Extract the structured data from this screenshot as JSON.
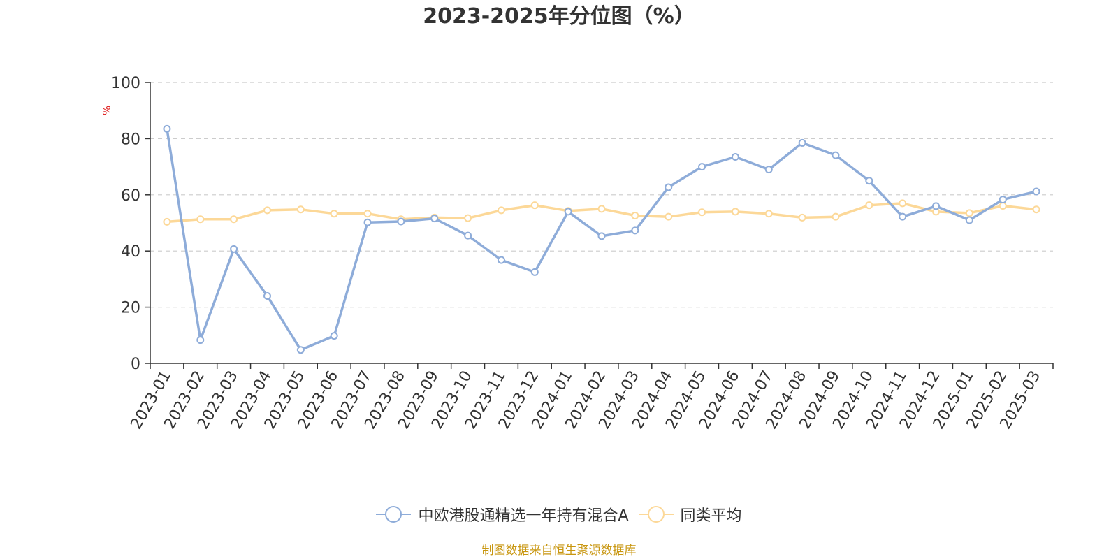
{
  "chart_data": {
    "type": "line",
    "title": "2023-2025年分位图（%）",
    "ylabel": "%",
    "xlabel": "",
    "ylim": [
      0,
      100
    ],
    "y_ticks": [
      0,
      20,
      40,
      60,
      80,
      100
    ],
    "grid": true,
    "legend_position": "bottom",
    "categories": [
      "2023-01",
      "2023-02",
      "2023-03",
      "2023-04",
      "2023-05",
      "2023-06",
      "2023-07",
      "2023-08",
      "2023-09",
      "2023-10",
      "2023-11",
      "2023-12",
      "2024-01",
      "2024-02",
      "2024-03",
      "2024-04",
      "2024-05",
      "2024-06",
      "2024-07",
      "2024-08",
      "2024-09",
      "2024-10",
      "2024-11",
      "2024-12",
      "2025-01",
      "2025-02",
      "2025-03"
    ],
    "series": [
      {
        "name": "中欧港股通精选一年持有混合A",
        "color": "#8eacd9",
        "values": [
          83.5,
          8.3,
          40.7,
          24.0,
          4.8,
          9.8,
          50.2,
          50.5,
          51.6,
          45.5,
          36.8,
          32.5,
          54.0,
          45.3,
          47.3,
          62.7,
          70.0,
          73.5,
          69.0,
          78.5,
          74.1,
          65.0,
          52.2,
          56.0,
          51.0,
          58.3,
          61.2
        ]
      },
      {
        "name": "同类平均",
        "color": "#fcd898",
        "values": [
          50.4,
          51.3,
          51.3,
          54.5,
          54.8,
          53.3,
          53.3,
          51.3,
          51.9,
          51.7,
          54.5,
          56.3,
          54.3,
          55.0,
          52.6,
          52.2,
          53.8,
          54.0,
          53.3,
          51.9,
          52.2,
          56.3,
          57.0,
          54.0,
          53.5,
          56.1,
          54.8
        ]
      }
    ]
  },
  "source": "制图数据来自恒生聚源数据库"
}
